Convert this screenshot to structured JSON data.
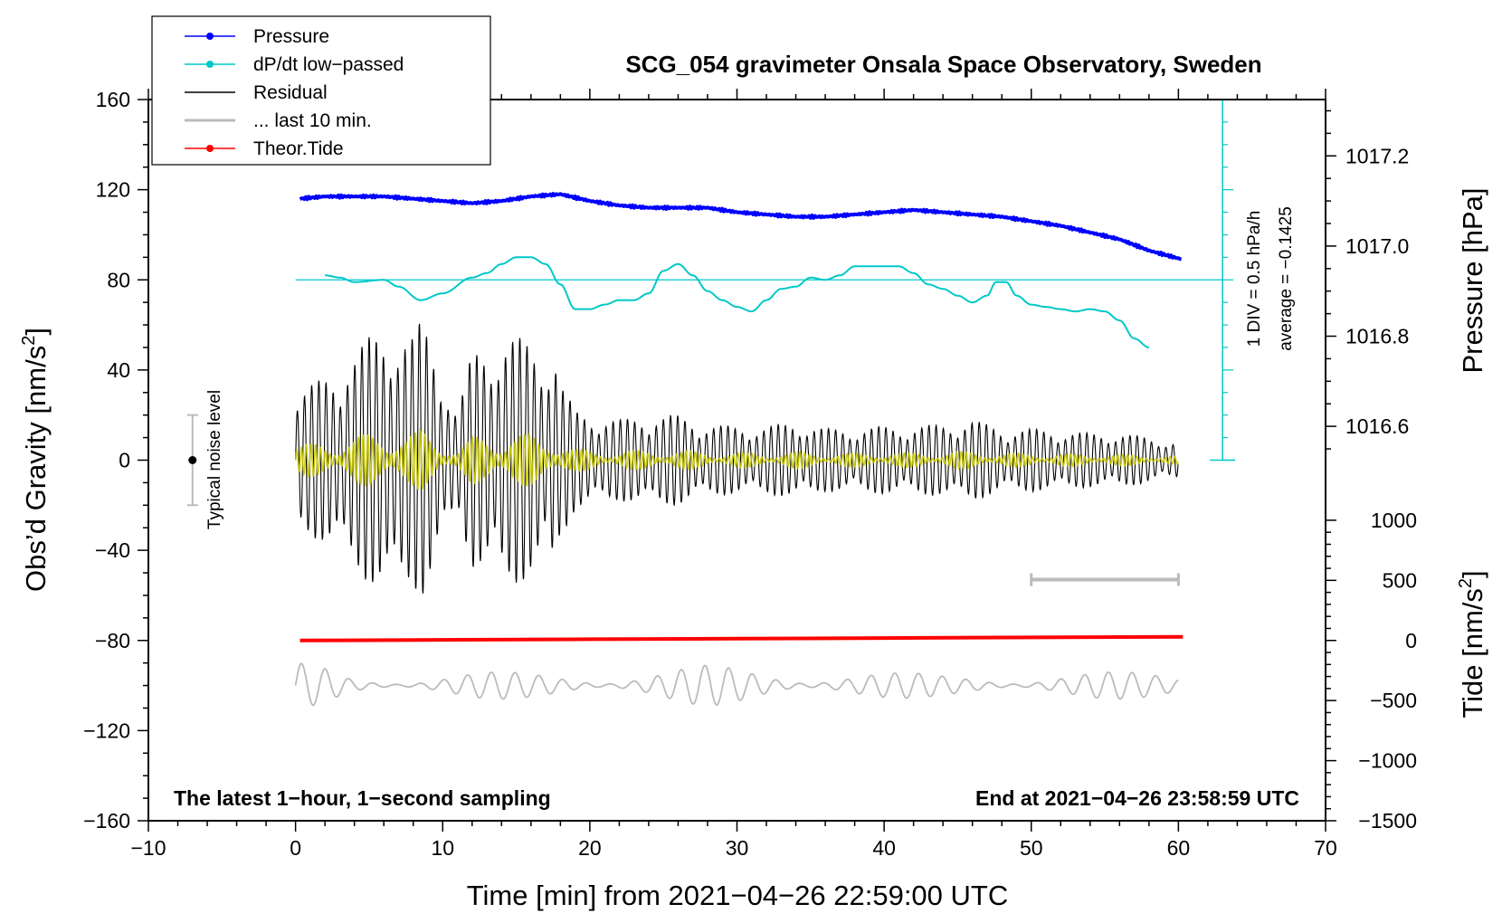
{
  "chart_data": {
    "type": "line",
    "title": "SCG_054 gravimeter Onsala Space Observatory, Sweden",
    "xlabel": "Time [min] from 2021−04−26 22:59:00 UTC",
    "ylabel_left": "Obs’d Gravity [nm/s",
    "ylabel_left_sup": "2",
    "ylabel_left_end": "]",
    "ylabel_right_top": "Pressure [hPa]",
    "ylabel_right_bottom": "Tide [nm/s",
    "ylabel_right_bottom_sup": "2",
    "ylabel_right_bottom_end": "]",
    "xlim": [
      -10,
      70
    ],
    "ylim": [
      -160,
      160
    ],
    "x_ticks": [
      -10,
      0,
      10,
      20,
      30,
      40,
      50,
      60,
      70
    ],
    "x_tick_labels": [
      "−10",
      "0",
      "10",
      "20",
      "30",
      "40",
      "50",
      "60",
      "70"
    ],
    "y_ticks": [
      -160,
      -120,
      -80,
      -40,
      0,
      40,
      80,
      120,
      160
    ],
    "y_tick_labels": [
      "−160",
      "−120",
      "−80",
      "−40",
      "0",
      "40",
      "80",
      "120",
      "160"
    ],
    "pressure_axis": {
      "ticks": [
        1016.6,
        1016.8,
        1017.0,
        1017.2
      ],
      "tick_labels": [
        "1016.6",
        "1016.8",
        "1017.0",
        "1017.2"
      ],
      "gravity_at_1017_0": 95,
      "gravity_per_hPa": 200
    },
    "tide_axis": {
      "ticks": [
        -1500,
        -1000,
        -500,
        0,
        500,
        1000
      ],
      "tick_labels": [
        "−1500",
        "−1000",
        "−500",
        "0",
        "500",
        "1000"
      ],
      "gravity_at_0": -80,
      "gravity_per_unit": 0.05333
    },
    "legend": [
      {
        "label": "Pressure",
        "color": "#0000ff",
        "marker": true
      },
      {
        "label": "dP/dt low−passed",
        "color": "#00c8c8",
        "marker": true
      },
      {
        "label": "Residual",
        "color": "#000000",
        "marker": false
      },
      {
        "label": "... last 10 min.",
        "color": "#bbbbbb",
        "marker": false
      },
      {
        "label": "Theor.Tide",
        "color": "#ff0000",
        "marker": true
      }
    ],
    "annotations": {
      "bottom_left": "The latest 1−hour, 1−second sampling",
      "bottom_right": "End at 2021−04−26 23:58:59 UTC",
      "noise_label": "Typical noise level",
      "div_label": "1 DIV = 0.5 hPa/h",
      "average_label": "average = −0.1425"
    },
    "noise_bar": {
      "x": -7,
      "center": 0,
      "half_range": 20
    },
    "ten_min_bar": {
      "x_start": 50,
      "x_end": 60,
      "y": -53
    },
    "dpdt_scale": {
      "x": 63,
      "y_min": 0,
      "y_max": 160,
      "baseline_y": 80,
      "tick_step": 10
    },
    "series": [
      {
        "name": "Pressure",
        "color": "#0000ff",
        "unit": "hPa",
        "x": [
          0.3,
          2,
          4,
          6,
          8,
          10,
          12,
          14,
          16,
          18,
          20,
          22,
          24,
          26,
          28,
          30,
          32,
          34,
          36,
          38,
          40,
          42,
          44,
          46,
          48,
          50,
          52,
          54,
          56,
          58,
          60.3
        ],
        "values": [
          1017.105,
          1017.11,
          1017.11,
          1017.11,
          1017.105,
          1017.1,
          1017.095,
          1017.1,
          1017.11,
          1017.115,
          1017.1,
          1017.09,
          1017.085,
          1017.085,
          1017.085,
          1017.075,
          1017.07,
          1017.065,
          1017.065,
          1017.07,
          1017.075,
          1017.08,
          1017.075,
          1017.07,
          1017.065,
          1017.055,
          1017.045,
          1017.03,
          1017.015,
          1016.99,
          1016.97
        ]
      },
      {
        "name": "dP/dt low-passed",
        "color": "#00c8c8",
        "unit": "nm/s2 plot scale",
        "x": [
          2,
          3,
          4,
          6,
          7,
          8.5,
          10,
          12,
          13,
          14,
          15,
          16,
          17,
          18,
          19,
          20,
          21,
          22,
          23,
          24,
          25,
          26,
          27,
          28,
          29,
          30,
          31,
          32,
          33,
          34,
          35,
          36,
          37,
          38,
          39,
          40,
          41,
          42,
          43,
          44,
          45,
          46,
          47,
          47.6,
          48.3,
          49,
          50,
          51,
          52,
          53,
          54,
          55,
          56,
          57,
          58
        ],
        "values": [
          82,
          81,
          79,
          80,
          77,
          71,
          74,
          81,
          83,
          87,
          90,
          90,
          87,
          78,
          67,
          67,
          69,
          71,
          71,
          74,
          84,
          87,
          82,
          75,
          71,
          68,
          66,
          71,
          76,
          77,
          81,
          80,
          82,
          86,
          86,
          86,
          86,
          83,
          78,
          76,
          73,
          70,
          73,
          79,
          79,
          73,
          69,
          68,
          67,
          66,
          67,
          66,
          62,
          54,
          50
        ]
      },
      {
        "name": "Residual",
        "color": "#000000",
        "unit": "nm/s2",
        "x_start": 0,
        "x_end": 60,
        "envelope_x": [
          0,
          2,
          4,
          5,
          6,
          6.5,
          7,
          8,
          8.5,
          9,
          10,
          11,
          12,
          13,
          14,
          15,
          16,
          17,
          17.5,
          18,
          19,
          20,
          22,
          24,
          26,
          28,
          30,
          32,
          34,
          36,
          38,
          40,
          42,
          44,
          46,
          48,
          50,
          52,
          54,
          56,
          58,
          60
        ],
        "envelope_values": [
          28,
          38,
          47,
          55,
          60,
          63,
          57,
          55,
          62,
          58,
          40,
          20,
          48,
          52,
          55,
          55,
          52,
          47,
          55,
          35,
          22,
          20,
          18,
          20,
          20,
          16,
          15,
          15,
          17,
          14,
          14,
          15,
          15,
          16,
          18,
          14,
          14,
          13,
          12,
          12,
          10,
          8
        ]
      },
      {
        "name": "... last 10 min.",
        "color": "#bbbbbb",
        "unit": "nm/s2",
        "x_start": 0,
        "x_end": 60,
        "center": -100,
        "envelope_x": [
          0,
          2,
          4,
          8,
          12,
          16,
          20,
          24,
          28,
          32,
          36,
          40,
          44,
          48,
          52,
          56,
          60
        ],
        "envelope_values": [
          10,
          9,
          5,
          5,
          6,
          6,
          7,
          7,
          9,
          8,
          8,
          6,
          5,
          6,
          6,
          6,
          6
        ]
      },
      {
        "name": "Theor.Tide",
        "color": "#ff0000",
        "unit": "nm/s2",
        "x": [
          0.3,
          10,
          20,
          30,
          40,
          50,
          60.3
        ],
        "values": [
          0,
          5,
          10,
          15,
          20,
          25,
          30
        ]
      }
    ],
    "residual_lowpass": {
      "name": "low-passed residual",
      "color": "#c8c800"
    }
  }
}
